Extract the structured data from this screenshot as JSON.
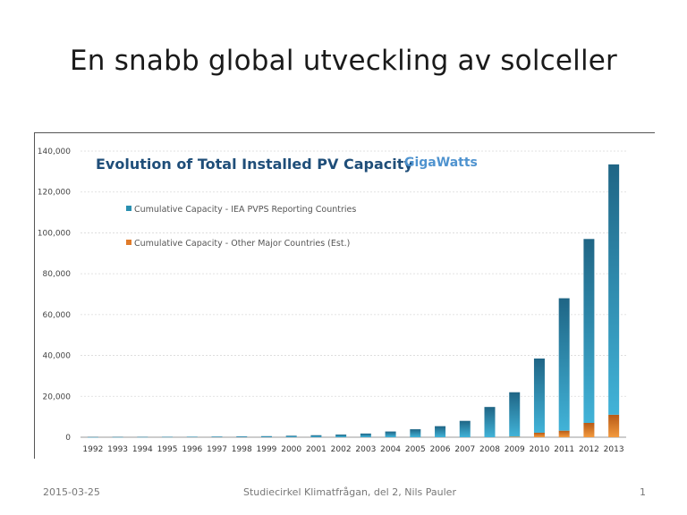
{
  "slide": {
    "title": "En snabb global utveckling av solceller",
    "footer_date": "2015-03-25",
    "footer_text": "Studiecirkel Klimatfrågan, del 2, Nils Pauler",
    "slide_number": "1"
  },
  "chart_data": {
    "type": "bar",
    "stacked": true,
    "title": "Evolution of Total Installed PV Capacity",
    "unit_label": "GigaWatts",
    "categories": [
      "1992",
      "1993",
      "1994",
      "1995",
      "1996",
      "1997",
      "1998",
      "1999",
      "2000",
      "2001",
      "2002",
      "2003",
      "2004",
      "2005",
      "2006",
      "2007",
      "2008",
      "2009",
      "2010",
      "2011",
      "2012",
      "2013"
    ],
    "series": [
      {
        "name": "Cumulative Capacity - Other Major Countries (Est.)",
        "color": "#e07b2a",
        "values": [
          0,
          0,
          0,
          0,
          0,
          0,
          0,
          0,
          0,
          0,
          0,
          0,
          0,
          0,
          0,
          0,
          0,
          300,
          2200,
          3200,
          7000,
          11000
        ]
      },
      {
        "name": "Cumulative Capacity - IEA PVPS Reporting Countries",
        "color": "#2a8fb0",
        "values": [
          110,
          140,
          170,
          200,
          250,
          320,
          400,
          520,
          730,
          980,
          1300,
          1800,
          2800,
          3900,
          5400,
          8000,
          14800,
          21700,
          36300,
          64800,
          90000,
          122500
        ]
      }
    ],
    "legend_order": [
      1,
      0
    ],
    "ylim": [
      0,
      140000
    ],
    "yticks": [
      0,
      20000,
      40000,
      60000,
      80000,
      100000,
      120000,
      140000
    ],
    "ytick_labels": [
      "0",
      "20,000",
      "40,000",
      "60,000",
      "80,000",
      "100,000",
      "120,000",
      "140,000"
    ],
    "grid": true,
    "legend_placement": "top-left"
  }
}
